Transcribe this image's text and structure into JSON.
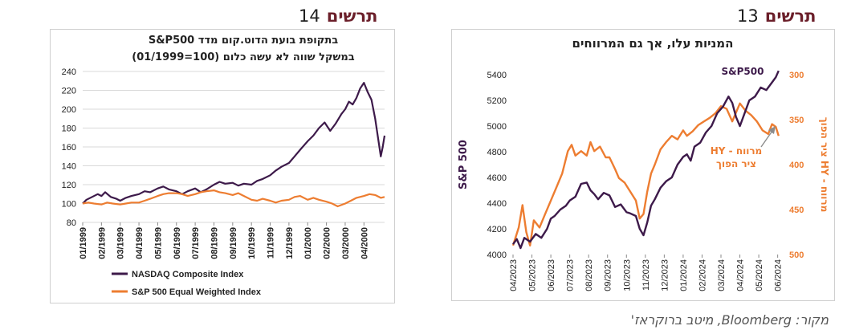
{
  "page": {
    "left_figure": {
      "word": "תרשים",
      "number": "14"
    },
    "right_figure": {
      "word": "תרשים",
      "number": "13"
    },
    "source": "מקור: Bloomberg, מיטב ברוקראז'"
  },
  "chart_data": [
    {
      "id": "dotcom",
      "type": "line",
      "title_line1": "בתקופת בועת הדוט.קום מדד S&P500",
      "title_line2": "במשקל שווה לא עשה כלום (100=01/1999)",
      "xlabel": "",
      "ylabel": "",
      "ylim": [
        80,
        240
      ],
      "yticks": [
        80,
        100,
        120,
        140,
        160,
        180,
        200,
        220,
        240
      ],
      "x_ticks": [
        "01/1999",
        "02/1999",
        "03/1999",
        "04/1999",
        "05/1999",
        "06/1999",
        "07/1999",
        "08/1999",
        "09/1999",
        "10/1999",
        "11/1999",
        "12/1999",
        "01/2000",
        "02/2000",
        "03/2000",
        "04/2000"
      ],
      "x_range": [
        0,
        16.1
      ],
      "grid": true,
      "legend_position": "bottom",
      "series": [
        {
          "name": "NASDAQ Composite Index",
          "color": "#3d1a4a",
          "points": [
            [
              0.0,
              100
            ],
            [
              0.2,
              104
            ],
            [
              0.5,
              107
            ],
            [
              0.8,
              110
            ],
            [
              1.0,
              108
            ],
            [
              1.2,
              112
            ],
            [
              1.5,
              107
            ],
            [
              1.8,
              105
            ],
            [
              2.0,
              103
            ],
            [
              2.3,
              106
            ],
            [
              2.6,
              108
            ],
            [
              3.0,
              110
            ],
            [
              3.3,
              113
            ],
            [
              3.6,
              112
            ],
            [
              4.0,
              116
            ],
            [
              4.3,
              118
            ],
            [
              4.6,
              115
            ],
            [
              5.0,
              113
            ],
            [
              5.3,
              110
            ],
            [
              5.6,
              113
            ],
            [
              6.0,
              116
            ],
            [
              6.3,
              112
            ],
            [
              6.6,
              115
            ],
            [
              7.0,
              120
            ],
            [
              7.3,
              123
            ],
            [
              7.6,
              121
            ],
            [
              8.0,
              122
            ],
            [
              8.3,
              119
            ],
            [
              8.6,
              121
            ],
            [
              9.0,
              120
            ],
            [
              9.3,
              124
            ],
            [
              9.6,
              126
            ],
            [
              10.0,
              130
            ],
            [
              10.3,
              135
            ],
            [
              10.6,
              139
            ],
            [
              11.0,
              143
            ],
            [
              11.3,
              150
            ],
            [
              11.6,
              157
            ],
            [
              12.0,
              166
            ],
            [
              12.3,
              172
            ],
            [
              12.6,
              180
            ],
            [
              12.9,
              186
            ],
            [
              13.2,
              177
            ],
            [
              13.5,
              185
            ],
            [
              13.8,
              195
            ],
            [
              14.0,
              200
            ],
            [
              14.2,
              208
            ],
            [
              14.4,
              205
            ],
            [
              14.6,
              212
            ],
            [
              14.8,
              222
            ],
            [
              15.0,
              228
            ],
            [
              15.2,
              218
            ],
            [
              15.4,
              210
            ],
            [
              15.6,
              190
            ],
            [
              15.75,
              170
            ],
            [
              15.9,
              150
            ],
            [
              16.0,
              160
            ],
            [
              16.1,
              172
            ]
          ]
        },
        {
          "name": "S&P 500 Equal Weighted Index",
          "color": "#ed7d31",
          "points": [
            [
              0.0,
              100
            ],
            [
              0.3,
              101
            ],
            [
              0.6,
              100
            ],
            [
              1.0,
              99
            ],
            [
              1.3,
              101
            ],
            [
              1.6,
              100
            ],
            [
              2.0,
              99
            ],
            [
              2.3,
              100
            ],
            [
              2.6,
              101
            ],
            [
              3.0,
              101
            ],
            [
              3.3,
              103
            ],
            [
              3.6,
              105
            ],
            [
              4.0,
              108
            ],
            [
              4.3,
              110
            ],
            [
              4.6,
              111
            ],
            [
              5.0,
              111
            ],
            [
              5.3,
              110
            ],
            [
              5.6,
              108
            ],
            [
              6.0,
              110
            ],
            [
              6.3,
              112
            ],
            [
              6.6,
              113
            ],
            [
              7.0,
              114
            ],
            [
              7.3,
              112
            ],
            [
              7.6,
              111
            ],
            [
              8.0,
              109
            ],
            [
              8.3,
              111
            ],
            [
              8.6,
              108
            ],
            [
              9.0,
              104
            ],
            [
              9.3,
              103
            ],
            [
              9.6,
              105
            ],
            [
              10.0,
              103
            ],
            [
              10.3,
              101
            ],
            [
              10.6,
              103
            ],
            [
              11.0,
              104
            ],
            [
              11.3,
              107
            ],
            [
              11.6,
              108
            ],
            [
              12.0,
              104
            ],
            [
              12.3,
              106
            ],
            [
              12.6,
              104
            ],
            [
              13.0,
              102
            ],
            [
              13.3,
              100
            ],
            [
              13.6,
              97
            ],
            [
              14.0,
              100
            ],
            [
              14.3,
              103
            ],
            [
              14.6,
              106
            ],
            [
              15.0,
              108
            ],
            [
              15.3,
              110
            ],
            [
              15.6,
              109
            ],
            [
              15.9,
              106
            ],
            [
              16.1,
              107
            ]
          ]
        }
      ]
    },
    {
      "id": "yields",
      "type": "line",
      "title": "המניות עלו, אך גם המרווחים",
      "xlabel": "",
      "ylabel": "S&P 500",
      "ylabel_right": "מרווח - HY ציר הפוך",
      "ylim": [
        4000,
        5400
      ],
      "yticks": [
        4000,
        4200,
        4400,
        4600,
        4800,
        5000,
        5200,
        5400
      ],
      "ylim_right": [
        300,
        500
      ],
      "yticks_right": [
        300,
        350,
        400,
        450,
        500
      ],
      "right_axis_inverted": true,
      "x_ticks": [
        "04/2023",
        "05/2023",
        "06/2023",
        "07/2023",
        "08/2023",
        "09/2023",
        "10/2023",
        "11/2023",
        "12/2023",
        "01/2024",
        "02/2024",
        "03/2024",
        "04/2024",
        "05/2024",
        "06/2024"
      ],
      "x_range": [
        0,
        14.1
      ],
      "grid": false,
      "annotations": [
        {
          "text": "S&P500",
          "color": "#3d1a4a"
        },
        {
          "text_line1": "מרווח - HY",
          "text_line2": "ציר הפוך",
          "color": "#ed7d31"
        }
      ],
      "series": [
        {
          "name": "S&P500",
          "axis": "left",
          "color": "#3d1a4a",
          "points": [
            [
              0.0,
              4080
            ],
            [
              0.2,
              4120
            ],
            [
              0.4,
              4050
            ],
            [
              0.6,
              4130
            ],
            [
              0.9,
              4100
            ],
            [
              1.2,
              4160
            ],
            [
              1.5,
              4130
            ],
            [
              1.8,
              4200
            ],
            [
              2.0,
              4280
            ],
            [
              2.2,
              4300
            ],
            [
              2.5,
              4350
            ],
            [
              2.8,
              4380
            ],
            [
              3.0,
              4420
            ],
            [
              3.3,
              4450
            ],
            [
              3.6,
              4550
            ],
            [
              3.9,
              4560
            ],
            [
              4.1,
              4500
            ],
            [
              4.3,
              4470
            ],
            [
              4.5,
              4430
            ],
            [
              4.8,
              4480
            ],
            [
              5.1,
              4460
            ],
            [
              5.4,
              4370
            ],
            [
              5.7,
              4390
            ],
            [
              6.0,
              4330
            ],
            [
              6.2,
              4320
            ],
            [
              6.5,
              4300
            ],
            [
              6.7,
              4200
            ],
            [
              6.9,
              4150
            ],
            [
              7.1,
              4250
            ],
            [
              7.3,
              4380
            ],
            [
              7.5,
              4430
            ],
            [
              7.8,
              4520
            ],
            [
              8.1,
              4570
            ],
            [
              8.4,
              4600
            ],
            [
              8.7,
              4700
            ],
            [
              9.0,
              4760
            ],
            [
              9.2,
              4780
            ],
            [
              9.4,
              4730
            ],
            [
              9.6,
              4840
            ],
            [
              9.9,
              4870
            ],
            [
              10.2,
              4950
            ],
            [
              10.5,
              5000
            ],
            [
              10.8,
              5100
            ],
            [
              11.1,
              5150
            ],
            [
              11.4,
              5230
            ],
            [
              11.6,
              5180
            ],
            [
              11.8,
              5070
            ],
            [
              12.0,
              5000
            ],
            [
              12.2,
              5080
            ],
            [
              12.5,
              5200
            ],
            [
              12.8,
              5230
            ],
            [
              13.1,
              5300
            ],
            [
              13.4,
              5280
            ],
            [
              13.7,
              5340
            ],
            [
              13.9,
              5380
            ],
            [
              14.05,
              5430
            ]
          ]
        },
        {
          "name": "מרווח - HY",
          "axis": "right",
          "color": "#ed7d31",
          "points": [
            [
              0.0,
              490
            ],
            [
              0.3,
              470
            ],
            [
              0.5,
              445
            ],
            [
              0.7,
              475
            ],
            [
              0.9,
              490
            ],
            [
              1.1,
              462
            ],
            [
              1.4,
              470
            ],
            [
              1.7,
              455
            ],
            [
              2.0,
              440
            ],
            [
              2.3,
              425
            ],
            [
              2.6,
              410
            ],
            [
              2.9,
              385
            ],
            [
              3.1,
              378
            ],
            [
              3.3,
              390
            ],
            [
              3.6,
              385
            ],
            [
              3.9,
              390
            ],
            [
              4.1,
              375
            ],
            [
              4.3,
              385
            ],
            [
              4.6,
              380
            ],
            [
              4.9,
              392
            ],
            [
              5.1,
              392
            ],
            [
              5.4,
              405
            ],
            [
              5.6,
              415
            ],
            [
              5.9,
              420
            ],
            [
              6.2,
              430
            ],
            [
              6.5,
              440
            ],
            [
              6.7,
              460
            ],
            [
              6.9,
              455
            ],
            [
              7.1,
              430
            ],
            [
              7.3,
              410
            ],
            [
              7.5,
              400
            ],
            [
              7.8,
              383
            ],
            [
              8.1,
              375
            ],
            [
              8.4,
              368
            ],
            [
              8.7,
              372
            ],
            [
              9.0,
              362
            ],
            [
              9.2,
              368
            ],
            [
              9.5,
              363
            ],
            [
              9.8,
              356
            ],
            [
              10.1,
              352
            ],
            [
              10.4,
              348
            ],
            [
              10.7,
              343
            ],
            [
              11.0,
              335
            ],
            [
              11.3,
              338
            ],
            [
              11.6,
              352
            ],
            [
              11.8,
              342
            ],
            [
              12.0,
              332
            ],
            [
              12.3,
              340
            ],
            [
              12.6,
              345
            ],
            [
              12.9,
              352
            ],
            [
              13.2,
              362
            ],
            [
              13.5,
              366
            ],
            [
              13.7,
              355
            ],
            [
              13.9,
              358
            ],
            [
              14.05,
              368
            ]
          ]
        }
      ]
    }
  ]
}
